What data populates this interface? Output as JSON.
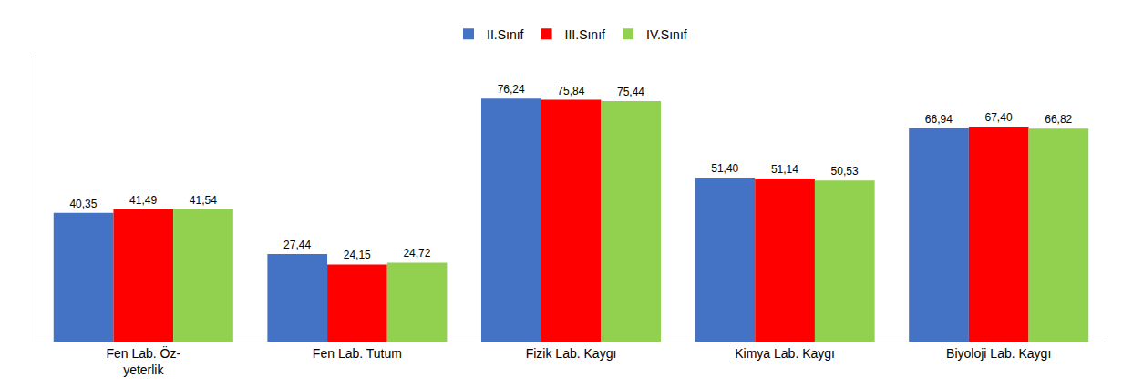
{
  "chart_data": {
    "type": "bar",
    "categories": [
      "Fen Lab. Öz-\nyeterlik",
      "Fen Lab. Tutum",
      "Fizik Lab. Kaygı",
      "Kimya Lab. Kaygı",
      "Biyoloji Lab. Kaygı"
    ],
    "series": [
      {
        "name": "II.Sınıf",
        "color": "#4472C4",
        "values": [
          40.35,
          27.44,
          76.24,
          51.4,
          66.94
        ],
        "value_labels": [
          "40,35",
          "27,44",
          "76,24",
          "51,40",
          "66,94"
        ]
      },
      {
        "name": "III.Sınıf",
        "color": "#FF0000",
        "values": [
          41.49,
          24.15,
          75.84,
          51.14,
          67.4
        ],
        "value_labels": [
          "41,49",
          "24,15",
          "75,84",
          "51,14",
          "67,40"
        ]
      },
      {
        "name": "IV.Sınıf",
        "color": "#92D050",
        "values": [
          41.54,
          24.72,
          75.44,
          50.53,
          66.82
        ],
        "value_labels": [
          "41,54",
          "24,72",
          "75,44",
          "50,53",
          "66,82"
        ]
      }
    ],
    "ylim": [
      0,
      90
    ],
    "tick_labels": "x",
    "grid": false,
    "legend": "upper center",
    "data_labels": true
  }
}
